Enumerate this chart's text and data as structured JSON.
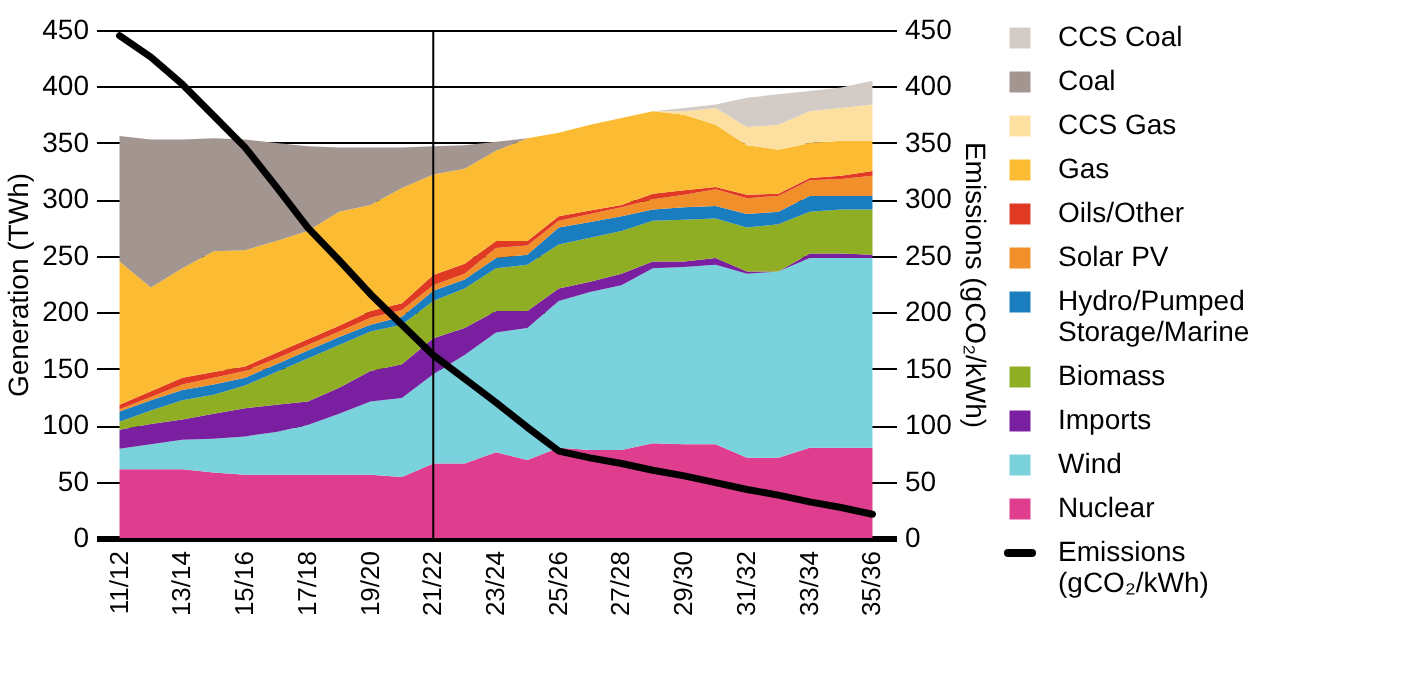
{
  "chart_data": {
    "type": "area",
    "stacked": true,
    "categories": [
      "11/12",
      null,
      "13/14",
      null,
      "15/16",
      null,
      "17/18",
      null,
      "19/20",
      null,
      "21/22",
      null,
      "23/24",
      null,
      "25/26",
      null,
      "27/28",
      null,
      "29/30",
      null,
      "31/32",
      null,
      "33/34",
      null,
      "35/36"
    ],
    "series": [
      {
        "name": "Nuclear",
        "color": "#df3e8e",
        "values": [
          61,
          61,
          61,
          58,
          56,
          56,
          56,
          56,
          56,
          54,
          66,
          66,
          76,
          69,
          80,
          78,
          78,
          84,
          83,
          83,
          71,
          71,
          80,
          80,
          80
        ]
      },
      {
        "name": "Wind",
        "color": "#79d2dc",
        "values": [
          18,
          22,
          26,
          30,
          34,
          38,
          44,
          54,
          65,
          70,
          79,
          96,
          106,
          117,
          130,
          140,
          146,
          155,
          157,
          159,
          163,
          165,
          168,
          168,
          168
        ]
      },
      {
        "name": "Imports",
        "color": "#7a1fa0",
        "values": [
          17,
          18,
          18,
          22,
          25,
          24,
          21,
          23,
          27,
          30,
          32,
          24,
          19,
          15,
          11,
          9,
          10,
          6,
          5,
          6,
          2,
          0,
          4,
          4,
          3
        ]
      },
      {
        "name": "Biomass",
        "color": "#8fae24",
        "values": [
          7,
          12,
          17,
          17,
          20,
          29,
          38,
          38,
          35,
          35,
          33,
          35,
          38,
          41,
          39,
          39,
          38,
          36,
          37,
          35,
          39,
          42,
          37,
          39,
          40
        ]
      },
      {
        "name": "Hydro/Pumped Storage/Marine",
        "color": "#1a7dbf",
        "values": [
          9,
          9,
          9,
          9,
          7,
          7,
          7,
          7,
          6,
          7,
          9,
          8,
          9,
          9,
          15,
          14,
          13,
          10,
          11,
          11,
          12,
          11,
          14,
          12,
          12
        ]
      },
      {
        "name": "Solar PV",
        "color": "#f18f2b",
        "values": [
          2,
          3,
          5,
          6,
          6,
          5,
          5,
          5,
          6,
          6,
          5,
          5,
          9,
          8,
          6,
          7,
          8,
          9,
          11,
          15,
          14,
          14,
          14,
          15,
          18
        ]
      },
      {
        "name": "Oils/Other",
        "color": "#e03a25",
        "values": [
          4,
          5,
          6,
          5,
          4,
          5,
          5,
          5,
          6,
          6,
          9,
          9,
          6,
          4,
          4,
          3,
          2,
          5,
          4,
          2,
          3,
          2,
          2,
          3,
          4
        ]
      },
      {
        "name": "Gas",
        "color": "#fbbc34",
        "values": [
          127,
          92,
          97,
          107,
          103,
          99,
          96,
          101,
          94,
          102,
          89,
          84,
          80,
          91,
          74,
          76,
          77,
          73,
          67,
          55,
          44,
          39,
          31,
          31,
          27
        ]
      },
      {
        "name": "CCS Gas",
        "color": "#fde0a0",
        "values": [
          null,
          null,
          null,
          null,
          null,
          null,
          null,
          null,
          null,
          null,
          null,
          null,
          null,
          null,
          null,
          null,
          null,
          0,
          3,
          15,
          16,
          22,
          28,
          29,
          32
        ]
      },
      {
        "name": "Coal",
        "color": "#a39590",
        "values": [
          111,
          131,
          114,
          100,
          98,
          87,
          75,
          57,
          51,
          36,
          25,
          21,
          8,
          0,
          null,
          null,
          null,
          null,
          null,
          null,
          null,
          null,
          null,
          null,
          null
        ]
      },
      {
        "name": "CCS Coal",
        "color": "#d3cbc6",
        "values": [
          null,
          null,
          null,
          null,
          null,
          null,
          null,
          null,
          null,
          null,
          null,
          null,
          null,
          null,
          null,
          null,
          null,
          0,
          3,
          3,
          26,
          27,
          18,
          18,
          21
        ]
      },
      {
        "name": "Emissions (gCO₂/kWh)",
        "type": "line",
        "axis": "y2",
        "color": "#000000",
        "values": [
          445,
          426,
          402,
          374,
          346,
          311,
          275,
          246,
          216,
          189,
          162,
          141,
          120,
          98,
          77,
          71,
          66,
          60,
          55,
          49,
          43,
          38,
          32,
          27,
          21
        ]
      }
    ],
    "ylabel": "Generation (TWh)",
    "y2label": "Emissions (gCO₂/kWh)",
    "ylim": [
      0,
      450
    ],
    "yticks": [
      0,
      50,
      100,
      150,
      200,
      250,
      300,
      350,
      400,
      450
    ],
    "y2lim": [
      0,
      450
    ],
    "y2ticks": [
      0,
      50,
      100,
      150,
      200,
      250,
      300,
      350,
      400,
      450
    ],
    "ref_lines": [
      {
        "axis": "x",
        "value": "21/22",
        "color": "#000000"
      }
    ],
    "grid": "y",
    "legend": "right"
  }
}
